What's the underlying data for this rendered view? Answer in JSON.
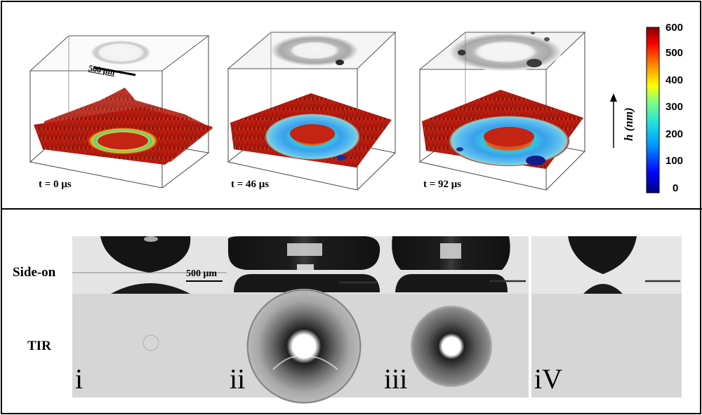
{
  "top_panel": {
    "time_labels": [
      "t = 0 μs",
      "t = 46 μs",
      "t = 92 μs"
    ],
    "scale_bar_label": "500 μm",
    "colorbar": {
      "ticks": [
        "600",
        "500",
        "400",
        "300",
        "200",
        "100",
        "0"
      ],
      "axis_label": "h (nm)",
      "colormap": "jet"
    }
  },
  "bottom_panel": {
    "row_labels": {
      "side": "Side-on",
      "tir": "TIR"
    },
    "scale_bar_label": "500 μm",
    "numerals": [
      "i",
      "ii",
      "iii",
      "iV"
    ]
  },
  "colors": {
    "height_surface": "#b81c10",
    "ring_blue": "#3a9ae8",
    "gray_background": "#d8d8d8"
  }
}
